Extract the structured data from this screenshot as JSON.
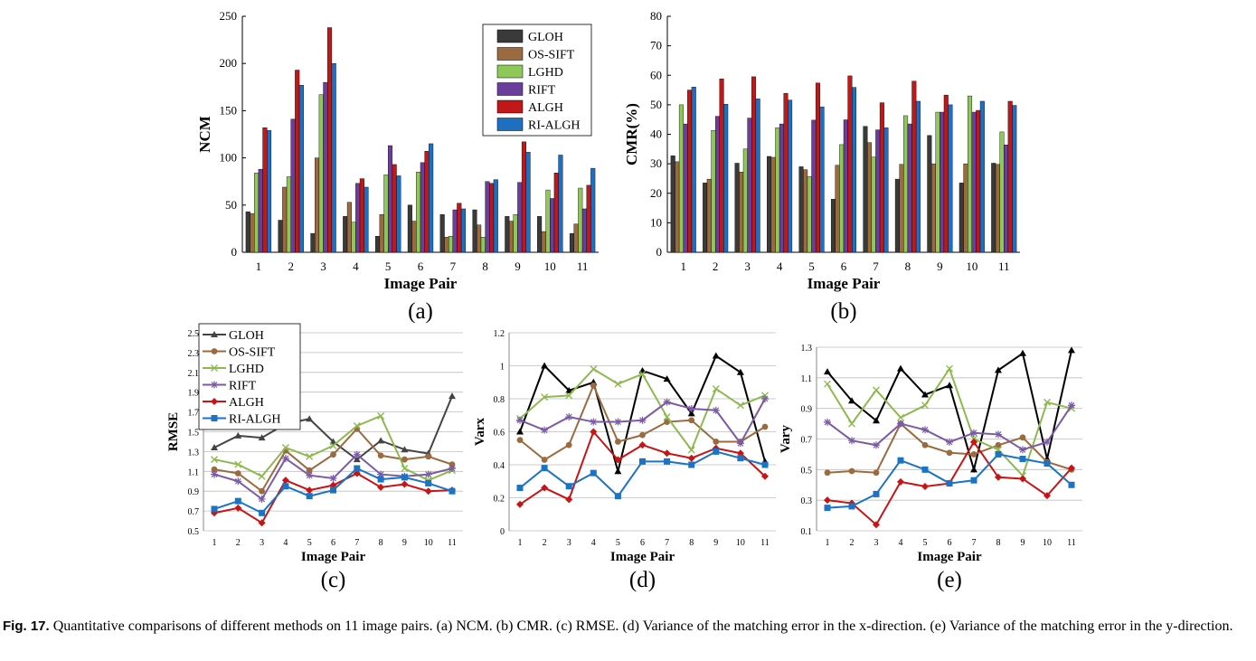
{
  "caption": {
    "label": "Fig. 17.",
    "text": "Quantitative comparisons of different methods on 11 image pairs. (a) NCM. (b) CMR. (c) RMSE. (d) Variance of the matching error in the x-direction. (e) Variance of the matching error in the y-direction."
  },
  "colors": {
    "GLOH": "#3a3a3a",
    "OS-SIFT": "#9b6a3e",
    "LGHD": "#8ec957",
    "RIFT": "#6a3f9c",
    "ALGH": "#c01818",
    "RI-ALGH": "#1d6fc2"
  },
  "chart_data": [
    {
      "id": "a",
      "type": "bar",
      "panel_label": "(a)",
      "xlabel": "Image Pair",
      "ylabel": "NCM",
      "ylim": [
        0,
        250
      ],
      "yticks": [
        0,
        50,
        100,
        150,
        200,
        250
      ],
      "categories": [
        "1",
        "2",
        "3",
        "4",
        "5",
        "6",
        "7",
        "8",
        "9",
        "10",
        "11"
      ],
      "legend": "top-right",
      "series": [
        {
          "name": "GLOH",
          "values": [
            43,
            34,
            20,
            38,
            17,
            50,
            40,
            45,
            38,
            38,
            20
          ]
        },
        {
          "name": "OS-SIFT",
          "values": [
            41,
            69,
            100,
            53,
            40,
            33,
            16,
            29,
            33,
            22,
            30
          ]
        },
        {
          "name": "LGHD",
          "values": [
            84,
            80,
            167,
            32,
            82,
            85,
            17,
            16,
            40,
            66,
            68
          ]
        },
        {
          "name": "RIFT",
          "values": [
            88,
            141,
            180,
            73,
            113,
            95,
            45,
            75,
            74,
            57,
            46
          ]
        },
        {
          "name": "ALGH",
          "values": [
            132,
            193,
            238,
            78,
            93,
            107,
            52,
            73,
            117,
            84,
            71
          ]
        },
        {
          "name": "RI-ALGH",
          "values": [
            129,
            177,
            200,
            69,
            81,
            115,
            46,
            77,
            106,
            103,
            89
          ]
        }
      ]
    },
    {
      "id": "b",
      "type": "bar",
      "panel_label": "(b)",
      "xlabel": "Image Pair",
      "ylabel": "CMR(%)",
      "ylim": [
        0,
        80
      ],
      "yticks": [
        0,
        10,
        20,
        30,
        40,
        50,
        60,
        70,
        80
      ],
      "categories": [
        "1",
        "2",
        "3",
        "4",
        "5",
        "6",
        "7",
        "8",
        "9",
        "10",
        "11"
      ],
      "series": [
        {
          "name": "GLOH",
          "values": [
            32.7,
            23.5,
            30.2,
            32.5,
            29,
            18,
            42.7,
            24.8,
            39.6,
            23.5,
            30.2
          ]
        },
        {
          "name": "OS-SIFT",
          "values": [
            30.7,
            24.8,
            27.2,
            32.2,
            28,
            29.5,
            37.2,
            29.8,
            30,
            30,
            29.8
          ]
        },
        {
          "name": "LGHD",
          "values": [
            50,
            41.3,
            35,
            42.2,
            25.7,
            36.5,
            32.3,
            46.3,
            47.5,
            53,
            40.8
          ]
        },
        {
          "name": "RIFT",
          "values": [
            43.5,
            46.1,
            45.5,
            43.5,
            44.8,
            44.9,
            41.5,
            43.5,
            47.5,
            47.5,
            36.4
          ]
        },
        {
          "name": "ALGH",
          "values": [
            55,
            58.8,
            59.5,
            53.9,
            57.4,
            59.8,
            50.7,
            58,
            53.3,
            48.1,
            51.2
          ]
        },
        {
          "name": "RI-ALGH",
          "values": [
            56,
            50.2,
            52,
            51.6,
            49.3,
            55.9,
            42.2,
            51.2,
            50,
            51.2,
            49.8
          ]
        }
      ]
    },
    {
      "id": "c",
      "type": "line",
      "panel_label": "(c)",
      "xlabel": "Image Pair",
      "ylabel": "RMSE",
      "ylim": [
        0.5,
        2.5
      ],
      "yticks": [
        "0.5",
        "0.7",
        "0.9",
        "1.1",
        "1.3",
        "1.5",
        "1.7",
        "1.9",
        "2.1",
        "2.3",
        "2.5"
      ],
      "x": [
        "1",
        "2",
        "3",
        "4",
        "5",
        "6",
        "7",
        "8",
        "9",
        "10",
        "11"
      ],
      "legend": "top-left",
      "series": [
        {
          "name": "GLOH",
          "values": [
            1.34,
            1.46,
            1.44,
            1.58,
            1.63,
            1.4,
            1.22,
            1.41,
            1.32,
            1.28,
            1.86
          ]
        },
        {
          "name": "OS-SIFT",
          "values": [
            1.12,
            1.08,
            0.9,
            1.31,
            1.11,
            1.27,
            1.53,
            1.26,
            1.22,
            1.25,
            1.17
          ]
        },
        {
          "name": "LGHD",
          "values": [
            1.22,
            1.17,
            1.05,
            1.34,
            1.25,
            1.36,
            1.56,
            1.66,
            1.13,
            1.01,
            1.11
          ]
        },
        {
          "name": "RIFT",
          "values": [
            1.07,
            1.0,
            0.82,
            1.23,
            1.06,
            1.03,
            1.27,
            1.07,
            1.05,
            1.07,
            1.13
          ]
        },
        {
          "name": "ALGH",
          "values": [
            0.68,
            0.73,
            0.58,
            1.01,
            0.91,
            0.96,
            1.08,
            0.94,
            0.97,
            0.9,
            0.91
          ]
        },
        {
          "name": "RI-ALGH",
          "values": [
            0.72,
            0.8,
            0.68,
            0.95,
            0.85,
            0.91,
            1.13,
            1.02,
            1.04,
            0.98,
            0.9
          ]
        }
      ]
    },
    {
      "id": "d",
      "type": "line",
      "panel_label": "(d)",
      "xlabel": "Image Pair",
      "ylabel": "Varx",
      "ylim": [
        0,
        1.2
      ],
      "yticks": [
        "0",
        "0.2",
        "0.4",
        "0.6",
        "0.8",
        "1",
        "1.2"
      ],
      "x": [
        "1",
        "2",
        "3",
        "4",
        "5",
        "6",
        "7",
        "8",
        "9",
        "10",
        "11"
      ],
      "series": [
        {
          "name": "GLOH",
          "values": [
            0.6,
            1.0,
            0.85,
            0.9,
            0.36,
            0.97,
            0.92,
            0.71,
            1.06,
            0.96,
            0.42
          ]
        },
        {
          "name": "OS-SIFT",
          "values": [
            0.55,
            0.43,
            0.52,
            0.88,
            0.54,
            0.58,
            0.66,
            0.67,
            0.54,
            0.54,
            0.63
          ]
        },
        {
          "name": "LGHD",
          "values": [
            0.68,
            0.81,
            0.82,
            0.98,
            0.89,
            0.95,
            0.69,
            0.49,
            0.86,
            0.76,
            0.82
          ]
        },
        {
          "name": "RIFT",
          "values": [
            0.67,
            0.61,
            0.69,
            0.66,
            0.66,
            0.67,
            0.78,
            0.74,
            0.73,
            0.53,
            0.8
          ]
        },
        {
          "name": "ALGH",
          "values": [
            0.16,
            0.26,
            0.19,
            0.6,
            0.43,
            0.52,
            0.47,
            0.44,
            0.5,
            0.47,
            0.33
          ]
        },
        {
          "name": "RI-ALGH",
          "values": [
            0.26,
            0.38,
            0.27,
            0.35,
            0.21,
            0.42,
            0.42,
            0.4,
            0.48,
            0.44,
            0.4
          ]
        }
      ]
    },
    {
      "id": "e",
      "type": "line",
      "panel_label": "(e)",
      "xlabel": "Image Pair",
      "ylabel": "Vary",
      "ylim": [
        0.1,
        1.3
      ],
      "yticks": [
        "0.1",
        "0.3",
        "0.5",
        "0.7",
        "0.9",
        "1.1",
        "1.3"
      ],
      "x": [
        "1",
        "2",
        "3",
        "4",
        "5",
        "6",
        "7",
        "8",
        "9",
        "10",
        "11"
      ],
      "series": [
        {
          "name": "GLOH",
          "values": [
            1.14,
            0.95,
            0.82,
            1.16,
            0.99,
            1.05,
            0.5,
            1.15,
            1.26,
            0.57,
            1.28
          ]
        },
        {
          "name": "OS-SIFT",
          "values": [
            0.48,
            0.49,
            0.48,
            0.8,
            0.66,
            0.61,
            0.6,
            0.66,
            0.71,
            0.55,
            0.5
          ]
        },
        {
          "name": "LGHD",
          "values": [
            1.06,
            0.8,
            1.02,
            0.84,
            0.92,
            1.16,
            0.7,
            0.63,
            0.46,
            0.94,
            0.9
          ]
        },
        {
          "name": "RIFT",
          "values": [
            0.81,
            0.69,
            0.66,
            0.8,
            0.76,
            0.68,
            0.74,
            0.73,
            0.63,
            0.68,
            0.92
          ]
        },
        {
          "name": "ALGH",
          "values": [
            0.3,
            0.28,
            0.14,
            0.42,
            0.39,
            0.41,
            0.68,
            0.45,
            0.44,
            0.33,
            0.51
          ]
        },
        {
          "name": "RI-ALGH",
          "values": [
            0.25,
            0.26,
            0.34,
            0.56,
            0.5,
            0.41,
            0.43,
            0.6,
            0.57,
            0.54,
            0.4
          ]
        }
      ]
    }
  ]
}
